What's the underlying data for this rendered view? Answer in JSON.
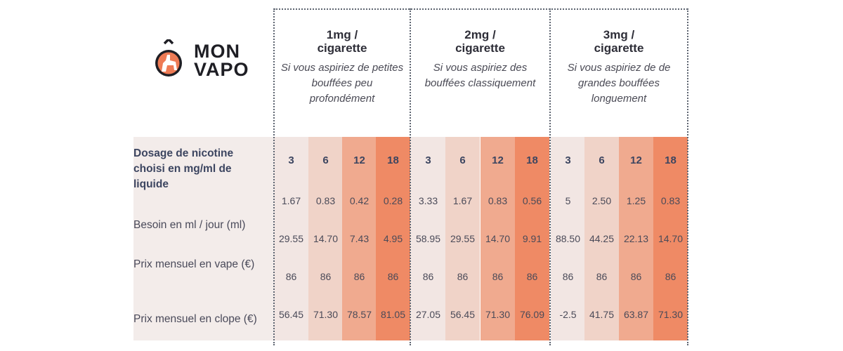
{
  "logo": {
    "line1": "MON",
    "line2": "VAPO"
  },
  "groups": [
    {
      "title_line1": "1mg /",
      "title_line2": "cigarette",
      "description": "Si vous aspiriez de petites bouffées peu profondément"
    },
    {
      "title_line1": "2mg /",
      "title_line2": "cigarette",
      "description": "Si vous aspiriez des bouffées classiquement"
    },
    {
      "title_line1": "3mg /",
      "title_line2": "cigarette",
      "description": "Si vous aspiriez de de grandes bouffées longuement"
    }
  ],
  "row_labels": {
    "dosage": "Dosage de nicotine choisi en mg/ml de liquide",
    "besoin": "Besoin en ml / jour (ml)",
    "vape": "Prix mensuel en vape (€)",
    "clope": "Prix mensuel en clope (€)"
  },
  "colors": [
    "#f2e6e3",
    "#f0d3c8",
    "#f0aa8f",
    "#ef8a65"
  ],
  "columns": [
    {
      "dosage": "3",
      "v1": "1.67",
      "v2": "29.55",
      "vape": "86",
      "clope": "56.45"
    },
    {
      "dosage": "6",
      "v1": "0.83",
      "v2": "14.70",
      "vape": "86",
      "clope": "71.30"
    },
    {
      "dosage": "12",
      "v1": "0.42",
      "v2": "7.43",
      "vape": "86",
      "clope": "78.57"
    },
    {
      "dosage": "18",
      "v1": "0.28",
      "v2": "4.95",
      "vape": "86",
      "clope": "81.05"
    },
    {
      "dosage": "3",
      "v1": "3.33",
      "v2": "58.95",
      "vape": "86",
      "clope": "27.05"
    },
    {
      "dosage": "6",
      "v1": "1.67",
      "v2": "29.55",
      "vape": "86",
      "clope": "56.45"
    },
    {
      "dosage": "12",
      "v1": "0.83",
      "v2": "14.70",
      "vape": "86",
      "clope": "71.30"
    },
    {
      "dosage": "18",
      "v1": "0.56",
      "v2": "9.91",
      "vape": "86",
      "clope": "76.09"
    },
    {
      "dosage": "3",
      "v1": "5",
      "v2": "88.50",
      "vape": "86",
      "clope": "-2.5"
    },
    {
      "dosage": "6",
      "v1": "2.50",
      "v2": "44.25",
      "vape": "86",
      "clope": "41.75"
    },
    {
      "dosage": "12",
      "v1": "1.25",
      "v2": "22.13",
      "vape": "86",
      "clope": "63.87"
    },
    {
      "dosage": "18",
      "v1": "0.83",
      "v2": "14.70",
      "vape": "86",
      "clope": "71.30"
    }
  ]
}
